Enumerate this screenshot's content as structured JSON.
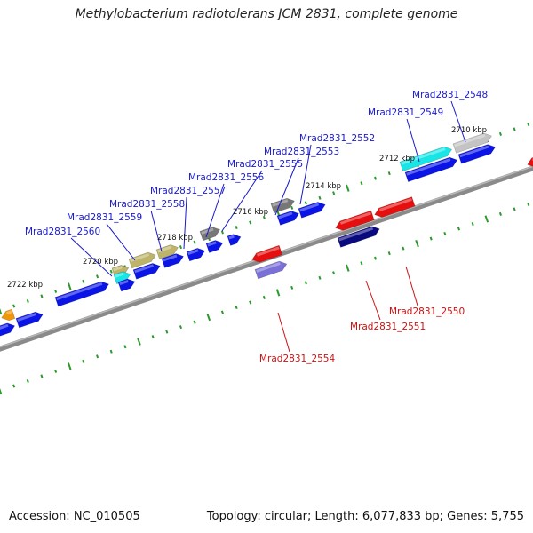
{
  "title": "Methylobacterium radiotolerans JCM 2831, complete genome",
  "footer": {
    "accession": "Accession: NC_010505",
    "stats": "Topology: circular; Length: 6,077,833 bp; Genes: 5,755"
  },
  "colors": {
    "backbone": "#8a8a8a",
    "tick": "#2a9a2a",
    "forward_label": "#1a1acc",
    "reverse_label": "#cc1111",
    "gene_blue": "#0a14e6",
    "gene_red": "#e60f0f",
    "gene_cyan": "#18e6e6",
    "gene_olive": "#bdb46a",
    "gene_gray": "#777777",
    "gene_lightgray": "#c4c4c4",
    "gene_navy": "#0a0a80",
    "gene_lavender": "#7a70d8",
    "gene_orange": "#f0960a"
  },
  "scale_labels": [
    "2710 kbp",
    "2712 kbp",
    "2714 kbp",
    "2716 kbp",
    "2718 kbp",
    "2720 kbp",
    "2722 kbp"
  ],
  "forward_labels": [
    "Mrad2831_2548",
    "Mrad2831_2549",
    "Mrad2831_2552",
    "Mrad2831_2553",
    "Mrad2831_2555",
    "Mrad2831_2556",
    "Mrad2831_2557",
    "Mrad2831_2558",
    "Mrad2831_2559",
    "Mrad2831_2560"
  ],
  "reverse_labels": [
    "Mrad2831_2550",
    "Mrad2831_2551",
    "Mrad2831_2554"
  ]
}
